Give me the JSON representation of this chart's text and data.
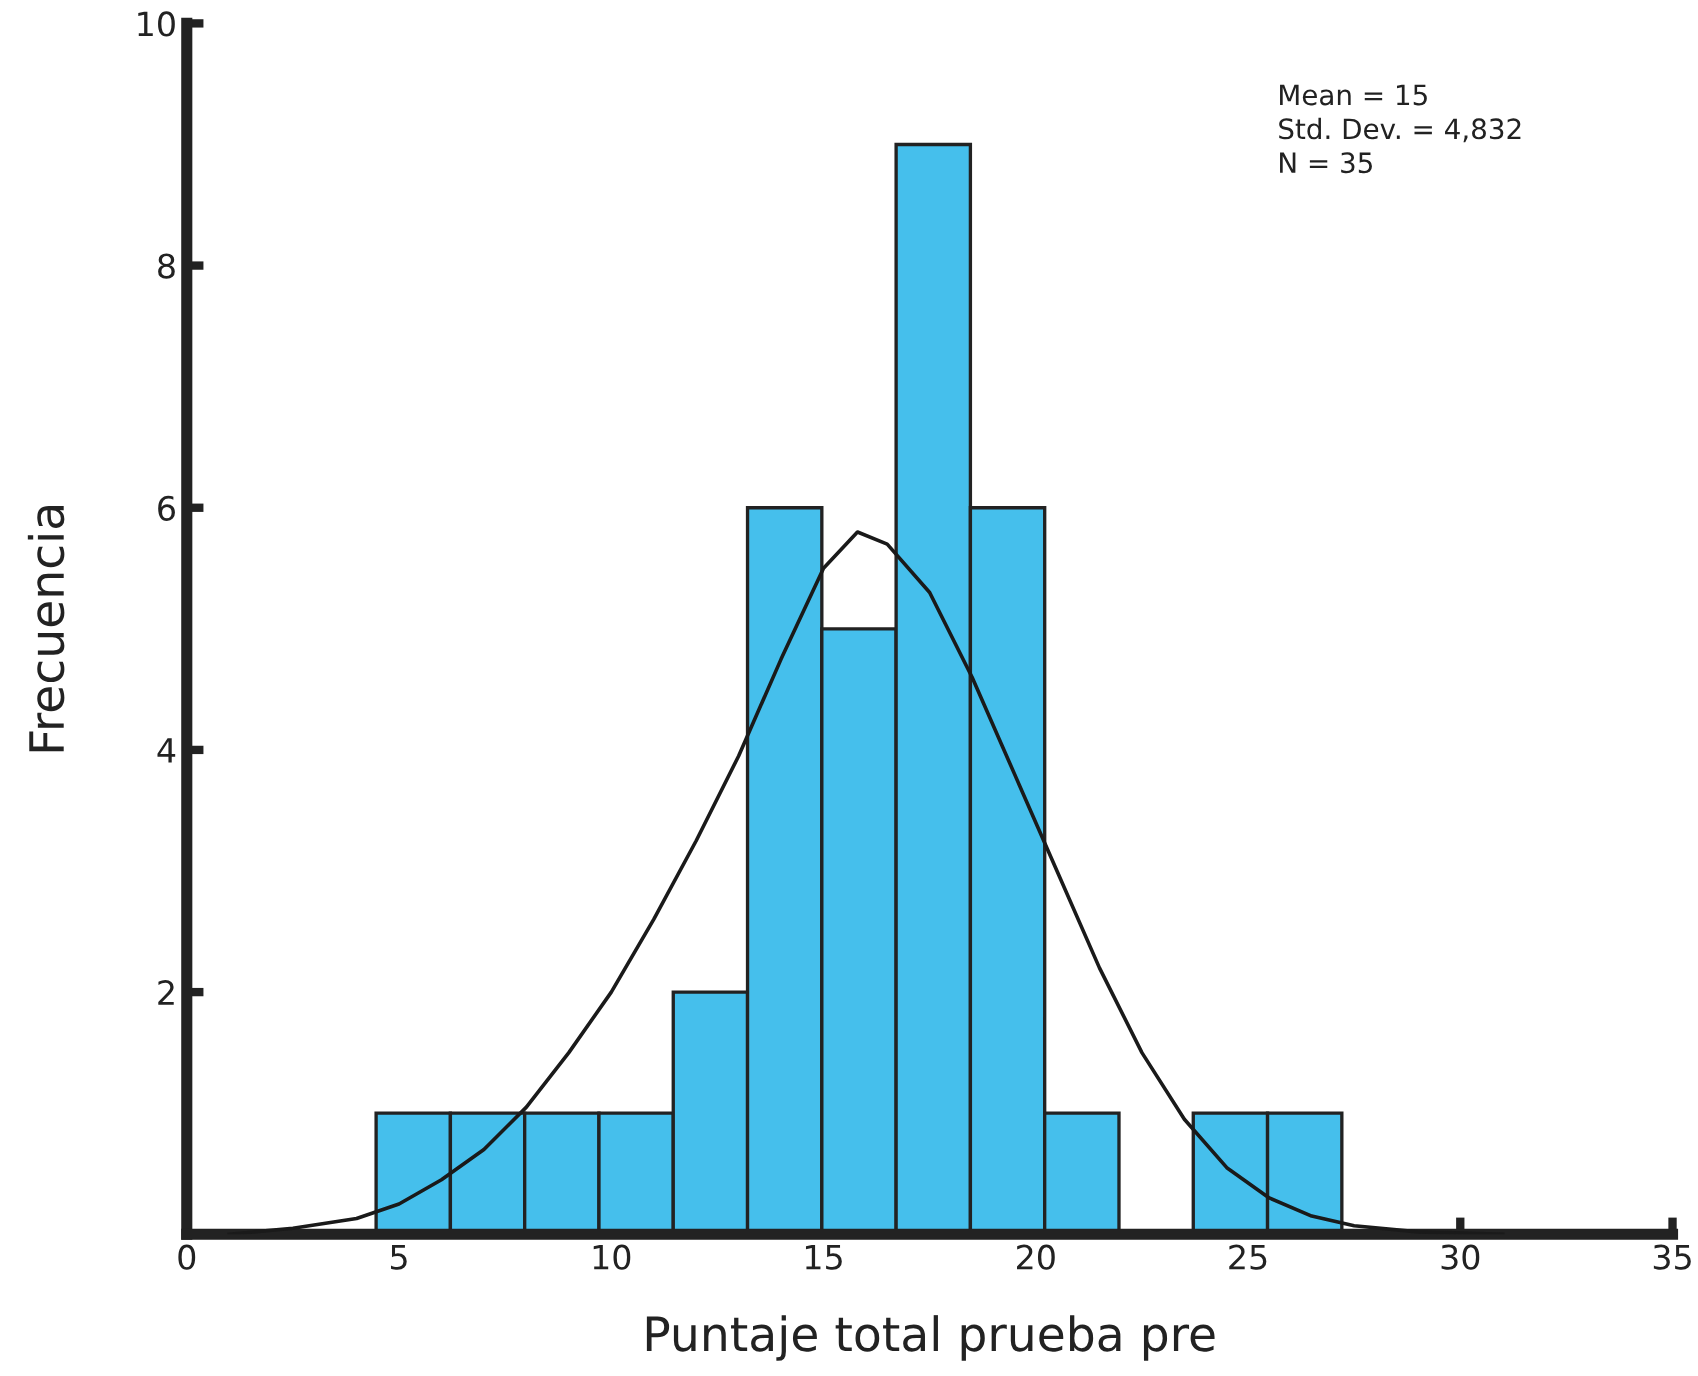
{
  "chart_data": {
    "type": "histogram",
    "xlabel": "Puntaje total prueba pre",
    "ylabel": "Frecuencia",
    "bins": [
      4.46,
      6.21,
      7.96,
      9.71,
      11.46,
      13.21,
      14.96,
      16.71,
      18.46,
      20.21,
      21.96,
      23.71,
      25.46,
      27.21
    ],
    "values": [
      1,
      1,
      1,
      1,
      2,
      6,
      5,
      9,
      6,
      1,
      0,
      1,
      1
    ],
    "color": "#45bfec",
    "series": [
      {
        "type": "line",
        "color": "#1a1a1a",
        "x": [
          1.0,
          2.5,
          4.0,
          5.0,
          6.0,
          7.0,
          8.0,
          9.0,
          10.0,
          11.0,
          12.0,
          13.0,
          14.0,
          15.0,
          15.8,
          16.5,
          17.5,
          18.5,
          19.5,
          20.5,
          21.5,
          22.5,
          23.5,
          24.5,
          25.5,
          26.5,
          27.5,
          29.0,
          31.0
        ],
        "values": [
          0.0,
          0.05,
          0.13,
          0.25,
          0.45,
          0.7,
          1.05,
          1.5,
          2.0,
          2.6,
          3.25,
          3.95,
          4.75,
          5.5,
          5.8,
          5.7,
          5.3,
          4.6,
          3.8,
          3.0,
          2.2,
          1.5,
          0.95,
          0.55,
          0.3,
          0.15,
          0.07,
          0.02,
          0.0
        ]
      }
    ],
    "xlim": [
      0,
      35
    ],
    "xticks": [
      0,
      5,
      10,
      15,
      20,
      25,
      30,
      35
    ],
    "ylim": [
      0,
      10
    ],
    "yticks": [
      2,
      4,
      6,
      8,
      10
    ],
    "grid": false,
    "legend": false,
    "annotations": [
      "Mean = 15",
      "Std. Dev. = 4,832",
      "N = 35"
    ]
  }
}
